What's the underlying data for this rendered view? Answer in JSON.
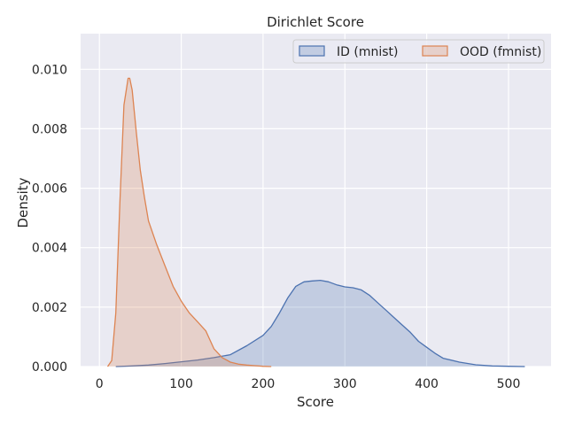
{
  "chart_data": {
    "type": "area",
    "title": "Dirichlet Score",
    "xlabel": "Score",
    "ylabel": "Density",
    "xlim": [
      -23,
      552
    ],
    "ylim": [
      0,
      0.0112
    ],
    "x_ticks": [
      0,
      100,
      200,
      300,
      400,
      500
    ],
    "x_tick_labels": [
      "0",
      "100",
      "200",
      "300",
      "400",
      "500"
    ],
    "y_ticks": [
      0,
      0.002,
      0.004,
      0.006,
      0.008,
      0.01
    ],
    "y_tick_labels": [
      "0.000",
      "0.002",
      "0.004",
      "0.006",
      "0.008",
      "0.010"
    ],
    "grid": true,
    "legend_position": "top-right",
    "series": [
      {
        "name": "ID (mnist)",
        "color": "#4c72b0",
        "x": [
          20,
          40,
          60,
          80,
          100,
          120,
          140,
          160,
          180,
          200,
          210,
          220,
          230,
          240,
          250,
          260,
          270,
          280,
          290,
          300,
          310,
          320,
          330,
          340,
          350,
          360,
          370,
          380,
          390,
          400,
          410,
          420,
          440,
          460,
          480,
          500,
          520
        ],
        "y": [
          0.0,
          2e-05,
          5e-05,
          0.0001,
          0.00016,
          0.00022,
          0.0003,
          0.0004,
          0.0007,
          0.00105,
          0.00135,
          0.0018,
          0.0023,
          0.0027,
          0.00285,
          0.00288,
          0.0029,
          0.00285,
          0.00275,
          0.00268,
          0.00265,
          0.00258,
          0.0024,
          0.00215,
          0.0019,
          0.00165,
          0.0014,
          0.00115,
          0.00085,
          0.00065,
          0.00045,
          0.00028,
          0.00015,
          6e-05,
          2e-05,
          1e-05,
          0.0
        ]
      },
      {
        "name": "OOD (fmnist)",
        "color": "#dd8452",
        "x": [
          10,
          15,
          20,
          25,
          30,
          35,
          37,
          40,
          45,
          50,
          55,
          60,
          70,
          80,
          90,
          100,
          110,
          120,
          130,
          140,
          150,
          160,
          170,
          180,
          190,
          200,
          210
        ],
        "y": [
          0.0,
          0.0002,
          0.0018,
          0.0055,
          0.0088,
          0.0097,
          0.0097,
          0.0093,
          0.0079,
          0.0066,
          0.0057,
          0.0049,
          0.0041,
          0.0034,
          0.0027,
          0.0022,
          0.0018,
          0.0015,
          0.0012,
          0.0006,
          0.0003,
          0.00015,
          8e-05,
          5e-05,
          3e-05,
          1e-05,
          0.0
        ]
      }
    ]
  }
}
